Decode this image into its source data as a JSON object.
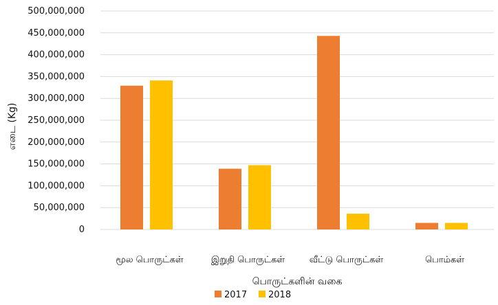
{
  "chart_data": {
    "type": "bar",
    "categories": [
      "மூல பொருட்கள்",
      "இறுதி பொருட்கள்",
      "வீட்டு பொருட்கள்",
      "பொம்கள்"
    ],
    "series": [
      {
        "name": "2017",
        "color": "#ED7D31",
        "values": [
          329000000,
          139000000,
          443000000,
          15000000
        ]
      },
      {
        "name": "2018",
        "color": "#FFC000",
        "values": [
          341000000,
          147000000,
          36000000,
          15000000
        ]
      }
    ],
    "yticks": [
      "0",
      "50,000,000",
      "100,000,000",
      "150,000,000",
      "200,000,000",
      "250,000,000",
      "300,000,000",
      "350,000,000",
      "400,000,000",
      "450,000,000",
      "500,000,000"
    ],
    "ylim": [
      0,
      500000000
    ],
    "ylabel": "எடை (Kg)",
    "xlabel": "பொருட்களின் வகை",
    "grid": true,
    "legend_position": "bottom"
  }
}
